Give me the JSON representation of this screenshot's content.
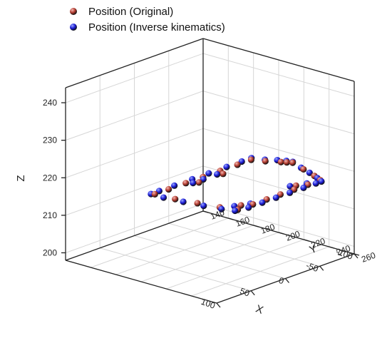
{
  "chart_data": {
    "type": "scatter3d",
    "legend": {
      "placement": "top-left",
      "entries": [
        {
          "label": "Position (Original)",
          "color": "#b03a2e",
          "highlight": "#f5b7b1"
        },
        {
          "label": "Position (Inverse kinematics)",
          "color": "#1a1ad6",
          "highlight": "#9aa8ff"
        }
      ]
    },
    "axes": {
      "x": {
        "label": "X",
        "range": [
          -100,
          100
        ],
        "ticks": [
          "-100",
          "-50",
          "0",
          "50",
          "100"
        ]
      },
      "y": {
        "label": "Y",
        "range": [
          140,
          260
        ],
        "ticks": [
          "140",
          "160",
          "180",
          "200",
          "220",
          "240",
          "260"
        ]
      },
      "z": {
        "label": "Z",
        "range": [
          198,
          244
        ],
        "ticks": [
          "200",
          "210",
          "220",
          "230",
          "240"
        ]
      }
    },
    "grid": true,
    "series": [
      {
        "name": "Position (Original)",
        "color": "#b03a2e",
        "points": [
          [
            -80,
            222,
            220
          ],
          [
            -72,
            235,
            220
          ],
          [
            -64,
            248,
            220
          ],
          [
            -58,
            256,
            220
          ],
          [
            -40,
            256,
            220
          ],
          [
            -20,
            256,
            220
          ],
          [
            0,
            256,
            220
          ],
          [
            20,
            256,
            220
          ],
          [
            40,
            256,
            220
          ],
          [
            62,
            256,
            220
          ],
          [
            68,
            245,
            220
          ],
          [
            73,
            230,
            220
          ],
          [
            78,
            215,
            220
          ],
          [
            80,
            200,
            220
          ],
          [
            60,
            200,
            220
          ],
          [
            35,
            200,
            220
          ],
          [
            10,
            200,
            220
          ],
          [
            -15,
            200,
            220
          ],
          [
            -40,
            200,
            220
          ],
          [
            -60,
            200,
            220
          ],
          [
            -66,
            208,
            220
          ],
          [
            -74,
            216,
            220
          ],
          [
            -77,
            219,
            220
          ],
          [
            -10,
            205,
            220
          ],
          [
            25,
            205,
            220
          ],
          [
            50,
            252,
            220
          ],
          [
            -30,
            252,
            220
          ]
        ]
      },
      {
        "name": "Position (Inverse kinematics)",
        "color": "#1a1ad6",
        "points": [
          [
            -82,
            221,
            220
          ],
          [
            -74,
            232,
            220
          ],
          [
            -68,
            242,
            220
          ],
          [
            -61,
            252,
            220
          ],
          [
            -56,
            258,
            220
          ],
          [
            -48,
            258,
            220
          ],
          [
            -30,
            258,
            220
          ],
          [
            -10,
            258,
            220
          ],
          [
            10,
            258,
            220
          ],
          [
            30,
            258,
            220
          ],
          [
            50,
            258,
            220
          ],
          [
            66,
            256,
            220
          ],
          [
            71,
            248,
            220
          ],
          [
            75,
            236,
            220
          ],
          [
            79,
            222,
            220
          ],
          [
            82,
            208,
            220
          ],
          [
            82,
            198,
            220
          ],
          [
            70,
            198,
            220
          ],
          [
            48,
            198,
            220
          ],
          [
            22,
            198,
            220
          ],
          [
            -2,
            198,
            220
          ],
          [
            -28,
            198,
            220
          ],
          [
            -50,
            198,
            220
          ],
          [
            -64,
            198,
            220
          ],
          [
            -69,
            206,
            220
          ],
          [
            -76,
            212,
            220
          ],
          [
            -80,
            217,
            220
          ],
          [
            -5,
            203,
            220
          ],
          [
            30,
            203,
            220
          ],
          [
            56,
            250,
            220
          ],
          [
            -25,
            250,
            220
          ],
          [
            15,
            203,
            220
          ],
          [
            -42,
            254,
            220
          ],
          [
            40,
            254,
            220
          ]
        ]
      }
    ]
  }
}
